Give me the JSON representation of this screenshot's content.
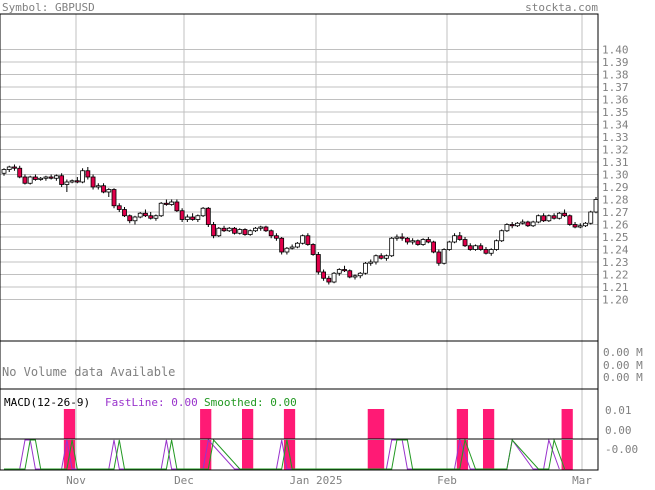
{
  "header": {
    "symbol_label": "Symbol: GBPUSD",
    "site": "stockta.com"
  },
  "colors": {
    "text": "#808080",
    "grid": "#c0c0c0",
    "frame": "#000000",
    "down_candle": "#e0004a",
    "up_candle": "#ffffff",
    "macd_bar": "#ff1a75",
    "fastline": "#9933cc",
    "smoothed": "#229922"
  },
  "price_axis": {
    "ticks": [
      "1.40",
      "1.39",
      "1.38",
      "1.37",
      "1.36",
      "1.35",
      "1.34",
      "1.33",
      "1.32",
      "1.31",
      "1.30",
      "1.29",
      "1.28",
      "1.27",
      "1.26",
      "1.25",
      "1.24",
      "1.23",
      "1.22",
      "1.21",
      "1.20"
    ]
  },
  "volume": {
    "message": "No Volume data Available",
    "ticks": [
      "0.00 M",
      "0.00 M",
      "0.00 M"
    ]
  },
  "macd": {
    "label": "MACD(12-26-9)",
    "fastline_label": "FastLine: 0.00",
    "smoothed_label": "Smoothed: 0.00",
    "ticks": [
      "0.01",
      "0.00",
      "-0.00"
    ]
  },
  "x_axis": {
    "labels": [
      "Nov",
      "Dec",
      "Jan 2025",
      "Feb",
      "Mar"
    ]
  },
  "chart_data": {
    "type": "candlestick",
    "symbol": "GBPUSD",
    "ylim": [
      1.2,
      1.4
    ],
    "candles": [
      [
        1.301,
        1.305,
        1.299,
        1.304
      ],
      [
        1.304,
        1.307,
        1.302,
        1.306
      ],
      [
        1.306,
        1.308,
        1.303,
        1.305
      ],
      [
        1.305,
        1.307,
        1.297,
        1.298
      ],
      [
        1.298,
        1.3,
        1.292,
        1.293
      ],
      [
        1.293,
        1.299,
        1.292,
        1.298
      ],
      [
        1.298,
        1.3,
        1.295,
        1.296
      ],
      [
        1.296,
        1.298,
        1.295,
        1.297
      ],
      [
        1.297,
        1.299,
        1.295,
        1.298
      ],
      [
        1.298,
        1.3,
        1.296,
        1.297
      ],
      [
        1.297,
        1.3,
        1.295,
        1.299
      ],
      [
        1.299,
        1.301,
        1.29,
        1.292
      ],
      [
        1.292,
        1.296,
        1.286,
        1.294
      ],
      [
        1.294,
        1.296,
        1.293,
        1.295
      ],
      [
        1.295,
        1.298,
        1.293,
        1.294
      ],
      [
        1.294,
        1.305,
        1.293,
        1.303
      ],
      [
        1.303,
        1.306,
        1.296,
        1.298
      ],
      [
        1.298,
        1.3,
        1.288,
        1.29
      ],
      [
        1.29,
        1.293,
        1.288,
        1.291
      ],
      [
        1.291,
        1.293,
        1.285,
        1.286
      ],
      [
        1.286,
        1.289,
        1.282,
        1.288
      ],
      [
        1.288,
        1.289,
        1.273,
        1.275
      ],
      [
        1.275,
        1.277,
        1.27,
        1.272
      ],
      [
        1.272,
        1.274,
        1.266,
        1.267
      ],
      [
        1.267,
        1.268,
        1.261,
        1.263
      ],
      [
        1.263,
        1.267,
        1.26,
        1.266
      ],
      [
        1.266,
        1.27,
        1.265,
        1.269
      ],
      [
        1.269,
        1.272,
        1.266,
        1.267
      ],
      [
        1.267,
        1.27,
        1.264,
        1.265
      ],
      [
        1.265,
        1.268,
        1.263,
        1.267
      ],
      [
        1.267,
        1.278,
        1.266,
        1.277
      ],
      [
        1.277,
        1.28,
        1.275,
        1.276
      ],
      [
        1.276,
        1.28,
        1.275,
        1.278
      ],
      [
        1.278,
        1.28,
        1.27,
        1.271
      ],
      [
        1.271,
        1.273,
        1.262,
        1.264
      ],
      [
        1.264,
        1.268,
        1.262,
        1.266
      ],
      [
        1.266,
        1.269,
        1.263,
        1.264
      ],
      [
        1.264,
        1.268,
        1.262,
        1.267
      ],
      [
        1.267,
        1.274,
        1.266,
        1.273
      ],
      [
        1.273,
        1.274,
        1.258,
        1.26
      ],
      [
        1.26,
        1.262,
        1.249,
        1.251
      ],
      [
        1.251,
        1.258,
        1.25,
        1.257
      ],
      [
        1.257,
        1.259,
        1.254,
        1.255
      ],
      [
        1.255,
        1.258,
        1.254,
        1.257
      ],
      [
        1.257,
        1.258,
        1.252,
        1.253
      ],
      [
        1.253,
        1.257,
        1.252,
        1.256
      ],
      [
        1.256,
        1.257,
        1.251,
        1.252
      ],
      [
        1.252,
        1.256,
        1.251,
        1.255
      ],
      [
        1.255,
        1.258,
        1.254,
        1.257
      ],
      [
        1.257,
        1.259,
        1.255,
        1.258
      ],
      [
        1.258,
        1.259,
        1.254,
        1.255
      ],
      [
        1.255,
        1.256,
        1.249,
        1.251
      ],
      [
        1.251,
        1.253,
        1.247,
        1.249
      ],
      [
        1.249,
        1.25,
        1.236,
        1.238
      ],
      [
        1.238,
        1.242,
        1.236,
        1.241
      ],
      [
        1.241,
        1.244,
        1.24,
        1.242
      ],
      [
        1.242,
        1.246,
        1.241,
        1.245
      ],
      [
        1.245,
        1.252,
        1.244,
        1.251
      ],
      [
        1.251,
        1.253,
        1.243,
        1.244
      ],
      [
        1.244,
        1.245,
        1.235,
        1.236
      ],
      [
        1.236,
        1.238,
        1.22,
        1.222
      ],
      [
        1.222,
        1.224,
        1.215,
        1.217
      ],
      [
        1.217,
        1.219,
        1.212,
        1.214
      ],
      [
        1.214,
        1.222,
        1.213,
        1.221
      ],
      [
        1.221,
        1.225,
        1.219,
        1.224
      ],
      [
        1.224,
        1.227,
        1.222,
        1.223
      ],
      [
        1.223,
        1.224,
        1.217,
        1.218
      ],
      [
        1.218,
        1.22,
        1.216,
        1.219
      ],
      [
        1.219,
        1.222,
        1.217,
        1.221
      ],
      [
        1.221,
        1.23,
        1.22,
        1.229
      ],
      [
        1.229,
        1.232,
        1.227,
        1.23
      ],
      [
        1.23,
        1.236,
        1.228,
        1.235
      ],
      [
        1.235,
        1.237,
        1.232,
        1.233
      ],
      [
        1.233,
        1.236,
        1.231,
        1.235
      ],
      [
        1.235,
        1.25,
        1.234,
        1.249
      ],
      [
        1.249,
        1.252,
        1.247,
        1.25
      ],
      [
        1.25,
        1.253,
        1.247,
        1.249
      ],
      [
        1.249,
        1.25,
        1.244,
        1.246
      ],
      [
        1.246,
        1.249,
        1.244,
        1.247
      ],
      [
        1.247,
        1.248,
        1.243,
        1.244
      ],
      [
        1.244,
        1.249,
        1.243,
        1.248
      ],
      [
        1.248,
        1.25,
        1.245,
        1.246
      ],
      [
        1.246,
        1.247,
        1.237,
        1.238
      ],
      [
        1.238,
        1.24,
        1.227,
        1.229
      ],
      [
        1.229,
        1.241,
        1.228,
        1.24
      ],
      [
        1.24,
        1.247,
        1.239,
        1.246
      ],
      [
        1.246,
        1.253,
        1.245,
        1.251
      ],
      [
        1.251,
        1.254,
        1.247,
        1.248
      ],
      [
        1.248,
        1.25,
        1.242,
        1.243
      ],
      [
        1.243,
        1.245,
        1.239,
        1.24
      ],
      [
        1.24,
        1.244,
        1.239,
        1.243
      ],
      [
        1.243,
        1.245,
        1.239,
        1.24
      ],
      [
        1.24,
        1.242,
        1.236,
        1.237
      ],
      [
        1.237,
        1.241,
        1.235,
        1.24
      ],
      [
        1.24,
        1.248,
        1.239,
        1.247
      ],
      [
        1.247,
        1.256,
        1.246,
        1.255
      ],
      [
        1.255,
        1.261,
        1.254,
        1.26
      ],
      [
        1.26,
        1.262,
        1.257,
        1.259
      ],
      [
        1.259,
        1.262,
        1.258,
        1.261
      ],
      [
        1.261,
        1.264,
        1.26,
        1.262
      ],
      [
        1.262,
        1.263,
        1.258,
        1.259
      ],
      [
        1.259,
        1.263,
        1.258,
        1.262
      ],
      [
        1.262,
        1.268,
        1.261,
        1.267
      ],
      [
        1.267,
        1.269,
        1.262,
        1.263
      ],
      [
        1.263,
        1.268,
        1.262,
        1.267
      ],
      [
        1.267,
        1.269,
        1.264,
        1.265
      ],
      [
        1.265,
        1.27,
        1.264,
        1.269
      ],
      [
        1.269,
        1.272,
        1.266,
        1.267
      ],
      [
        1.267,
        1.268,
        1.259,
        1.26
      ],
      [
        1.26,
        1.262,
        1.257,
        1.258
      ],
      [
        1.258,
        1.261,
        1.257,
        1.259
      ],
      [
        1.259,
        1.262,
        1.258,
        1.261
      ],
      [
        1.261,
        1.271,
        1.26,
        1.27
      ],
      [
        1.27,
        1.282,
        1.269,
        1.28
      ]
    ],
    "macd_bars": [
      {
        "start": 12,
        "end": 13
      },
      {
        "start": 38,
        "end": 39
      },
      {
        "start": 46,
        "end": 47
      },
      {
        "start": 54,
        "end": 55
      },
      {
        "start": 70,
        "end": 72
      },
      {
        "start": 87,
        "end": 88
      },
      {
        "start": 92,
        "end": 93
      },
      {
        "start": 107,
        "end": 108
      }
    ],
    "signal_lines": [
      {
        "color": "purple",
        "segments": [
          [
            0,
            0
          ],
          [
            3,
            0
          ],
          [
            4,
            1
          ],
          [
            5,
            1
          ],
          [
            6,
            0
          ],
          [
            11,
            0
          ],
          [
            12,
            1
          ],
          [
            13,
            0
          ],
          [
            20,
            0
          ],
          [
            21,
            1
          ],
          [
            22,
            0
          ],
          [
            30,
            0
          ],
          [
            31,
            1
          ],
          [
            32,
            0
          ],
          [
            38,
            0
          ],
          [
            39,
            1
          ],
          [
            44,
            0
          ],
          [
            52,
            0
          ],
          [
            53,
            1
          ],
          [
            54,
            0
          ],
          [
            60,
            0
          ],
          [
            73,
            0
          ],
          [
            74,
            1
          ],
          [
            76,
            1
          ],
          [
            77,
            0
          ],
          [
            86,
            0
          ],
          [
            87,
            1
          ],
          [
            89,
            0
          ],
          [
            96,
            0
          ],
          [
            97,
            1
          ],
          [
            101,
            0
          ],
          [
            103,
            0
          ],
          [
            104,
            1
          ],
          [
            106,
            0
          ]
        ]
      },
      {
        "color": "green",
        "segments": [
          [
            0,
            0
          ],
          [
            4,
            0
          ],
          [
            5,
            1
          ],
          [
            6,
            1
          ],
          [
            7,
            0
          ],
          [
            12,
            0
          ],
          [
            13,
            1
          ],
          [
            14,
            0
          ],
          [
            21,
            0
          ],
          [
            22,
            1
          ],
          [
            23,
            0
          ],
          [
            31,
            0
          ],
          [
            32,
            1
          ],
          [
            33,
            0
          ],
          [
            39,
            0
          ],
          [
            40,
            1
          ],
          [
            45,
            0
          ],
          [
            53,
            0
          ],
          [
            54,
            1
          ],
          [
            55,
            0
          ],
          [
            60,
            0
          ],
          [
            74,
            0
          ],
          [
            75,
            1
          ],
          [
            77,
            1
          ],
          [
            78,
            0
          ],
          [
            87,
            0
          ],
          [
            88,
            1
          ],
          [
            90,
            0
          ],
          [
            96,
            0
          ],
          [
            97,
            1
          ],
          [
            102,
            0
          ],
          [
            104,
            0
          ],
          [
            105,
            1
          ],
          [
            107,
            0
          ]
        ]
      }
    ],
    "x_axis_labels": [
      "Nov",
      "Dec",
      "Jan 2025",
      "Feb",
      "Mar"
    ],
    "grid": true
  }
}
